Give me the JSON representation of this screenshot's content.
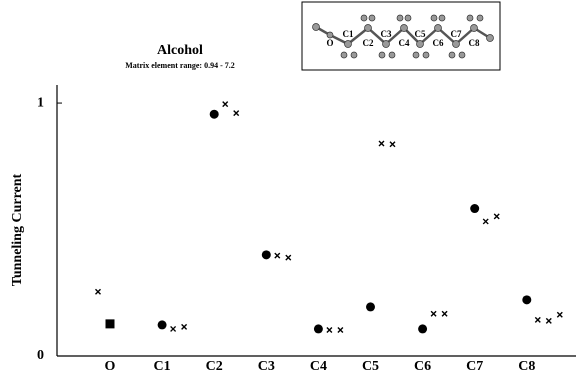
{
  "chart_data": {
    "type": "scatter",
    "title": "Alcohol",
    "subtitle": "Matrix element range: 0.94 - 7.2",
    "y_label": "Tunneling Current",
    "categories": [
      "O",
      "C1",
      "C2",
      "C3",
      "C4",
      "C5",
      "C6",
      "C7",
      "C8"
    ],
    "ylim": [
      0,
      1.02
    ],
    "yticks": [
      0,
      1
    ],
    "series": [
      {
        "marker": "square",
        "color": "#000000",
        "values": [
          0.127,
          null,
          null,
          null,
          null,
          null,
          null,
          null,
          null
        ]
      },
      {
        "marker": "circle",
        "color": "#000000",
        "values": [
          null,
          0.123,
          0.956,
          0.4,
          0.107,
          0.194,
          0.107,
          0.583,
          0.222
        ]
      },
      {
        "marker": "x",
        "color": "#000000",
        "values": [
          0.254,
          null,
          null,
          null,
          null,
          null,
          null,
          null,
          null
        ]
      },
      {
        "marker": "x",
        "color": "#000000",
        "values": [
          null,
          0.107,
          0.996,
          0.397,
          0.103,
          0.84,
          0.167,
          0.532,
          0.143
        ]
      },
      {
        "marker": "x",
        "color": "#000000",
        "values": [
          null,
          0.115,
          0.96,
          0.389,
          0.103,
          0.837,
          0.167,
          0.552,
          0.139
        ]
      },
      {
        "marker": "x",
        "color": "#000000",
        "values": [
          null,
          null,
          null,
          null,
          null,
          null,
          null,
          null,
          0.163
        ]
      }
    ],
    "inset_labels": [
      "O",
      "C1",
      "C2",
      "C3",
      "C4",
      "C5",
      "C6",
      "C7",
      "C8"
    ]
  }
}
